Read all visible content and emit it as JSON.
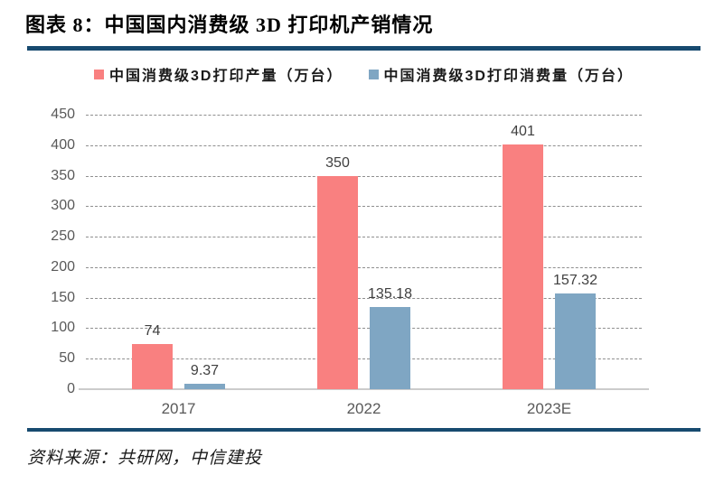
{
  "page": {
    "title": "图表 8：中国国内消费级 3D 打印机产销情况",
    "source": "资料来源：共研网，中信建投"
  },
  "colors": {
    "rule": "#174A6F",
    "production": "#F98080",
    "consumption": "#7FA6C3",
    "axis_text": "#595959",
    "value_text": "#404040",
    "gridline": "#8F8F8F",
    "axis_line": "#CCCCCC"
  },
  "chart_data": {
    "type": "bar",
    "title": "",
    "categories": [
      "2017",
      "2022",
      "2023E"
    ],
    "series": [
      {
        "key": "production",
        "name": "中国消费级3D打印产量（万台）",
        "color": "#F98080",
        "values": [
          74,
          350,
          401
        ],
        "labels": [
          "74",
          "350",
          "401"
        ]
      },
      {
        "key": "consumption",
        "name": "中国消费级3D打印消费量（万台）",
        "color": "#7FA6C3",
        "values": [
          9.37,
          135.18,
          157.32
        ],
        "labels": [
          "9.37",
          "135.18",
          "157.32"
        ]
      }
    ],
    "xlabel": "",
    "ylabel": "",
    "ylim": [
      0,
      450
    ],
    "ytick_step": 50,
    "grid": "horizontal-dashed",
    "legend_position": "top"
  }
}
